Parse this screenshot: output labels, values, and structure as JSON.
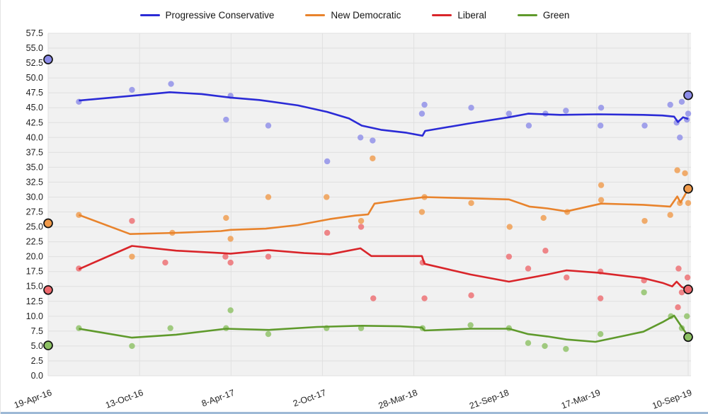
{
  "legend": [
    {
      "label": "Progressive Conservative",
      "color": "#2b2bd6"
    },
    {
      "label": "New Democratic",
      "color": "#e8832c"
    },
    {
      "label": "Liberal",
      "color": "#d9252a"
    },
    {
      "label": "Green",
      "color": "#5f9a2c"
    }
  ],
  "chart_data": {
    "type": "scatter",
    "subtype": "poll-tracker with trend lines and election markers",
    "title": "",
    "xlabel": "",
    "ylabel": "",
    "grid": true,
    "legend_position": "top-center",
    "ylim": [
      0,
      57.5
    ],
    "y_ticks": [
      "0.0",
      "2.5",
      "5.0",
      "7.5",
      "10.0",
      "12.5",
      "15.0",
      "17.5",
      "20.0",
      "22.5",
      "25.0",
      "27.5",
      "30.0",
      "32.5",
      "35.0",
      "37.5",
      "40.0",
      "42.5",
      "45.0",
      "47.5",
      "50.0",
      "52.5",
      "55.0",
      "57.5"
    ],
    "x_tick_labels": [
      "19-Apr-16",
      "13-Oct-16",
      "8-Apr-17",
      "2-Oct-17",
      "28-Mar-18",
      "21-Sep-18",
      "17-Mar-19",
      "10-Sep-19"
    ],
    "x_note": "x values below are fractions of the axis: 0 = 19-Apr-16, 1 = 10-Sep-19",
    "series": [
      {
        "name": "Progressive Conservative",
        "line_color": "#2b2bd6",
        "point_color": "#8c8ce8",
        "election_start": {
          "date": "19-Apr-16",
          "value": 53.1
        },
        "election_end": {
          "date": "10-Sep-19",
          "value": 47.1
        },
        "trend": [
          [
            0.048,
            46.2
          ],
          [
            0.13,
            47.0
          ],
          [
            0.19,
            47.6
          ],
          [
            0.24,
            47.3
          ],
          [
            0.285,
            46.7
          ],
          [
            0.33,
            46.3
          ],
          [
            0.39,
            45.4
          ],
          [
            0.436,
            44.3
          ],
          [
            0.47,
            43.2
          ],
          [
            0.49,
            42.0
          ],
          [
            0.52,
            41.3
          ],
          [
            0.56,
            40.8
          ],
          [
            0.585,
            40.3
          ],
          [
            0.589,
            41.1
          ],
          [
            0.66,
            42.4
          ],
          [
            0.72,
            43.4
          ],
          [
            0.75,
            44.0
          ],
          [
            0.8,
            43.8
          ],
          [
            0.86,
            43.9
          ],
          [
            0.93,
            43.8
          ],
          [
            0.96,
            43.7
          ],
          [
            0.978,
            43.5
          ],
          [
            0.984,
            42.6
          ],
          [
            0.992,
            43.4
          ],
          [
            1.0,
            43.1
          ]
        ],
        "polls": [
          [
            0.048,
            46
          ],
          [
            0.131,
            48
          ],
          [
            0.192,
            49
          ],
          [
            0.278,
            43
          ],
          [
            0.285,
            47
          ],
          [
            0.344,
            42
          ],
          [
            0.436,
            36
          ],
          [
            0.488,
            40
          ],
          [
            0.507,
            39.5
          ],
          [
            0.584,
            44
          ],
          [
            0.588,
            45.5
          ],
          [
            0.661,
            45
          ],
          [
            0.72,
            44
          ],
          [
            0.751,
            42
          ],
          [
            0.777,
            44
          ],
          [
            0.809,
            44.5
          ],
          [
            0.863,
            42
          ],
          [
            0.864,
            45
          ],
          [
            0.932,
            42
          ],
          [
            0.972,
            45.5
          ],
          [
            0.982,
            42.5
          ],
          [
            0.987,
            40
          ],
          [
            0.99,
            46
          ],
          [
            0.998,
            43
          ],
          [
            1.0,
            44
          ]
        ]
      },
      {
        "name": "New Democratic",
        "line_color": "#e8832c",
        "point_color": "#f09a4a",
        "election_start": {
          "date": "19-Apr-16",
          "value": 25.6
        },
        "election_end": {
          "date": "10-Sep-19",
          "value": 31.4
        },
        "trend": [
          [
            0.048,
            27.0
          ],
          [
            0.128,
            23.8
          ],
          [
            0.2,
            24.0
          ],
          [
            0.27,
            24.3
          ],
          [
            0.285,
            24.5
          ],
          [
            0.34,
            24.7
          ],
          [
            0.39,
            25.3
          ],
          [
            0.44,
            26.3
          ],
          [
            0.48,
            26.9
          ],
          [
            0.5,
            27.1
          ],
          [
            0.51,
            28.9
          ],
          [
            0.55,
            29.5
          ],
          [
            0.588,
            30.0
          ],
          [
            0.66,
            29.8
          ],
          [
            0.72,
            29.6
          ],
          [
            0.752,
            28.4
          ],
          [
            0.78,
            28.1
          ],
          [
            0.81,
            27.6
          ],
          [
            0.864,
            28.9
          ],
          [
            0.93,
            28.7
          ],
          [
            0.972,
            28.4
          ],
          [
            0.983,
            30.1
          ],
          [
            0.988,
            29.1
          ],
          [
            1.0,
            31.3
          ]
        ],
        "polls": [
          [
            0.048,
            27
          ],
          [
            0.131,
            20
          ],
          [
            0.194,
            24
          ],
          [
            0.278,
            26.5
          ],
          [
            0.285,
            23
          ],
          [
            0.344,
            30
          ],
          [
            0.435,
            30
          ],
          [
            0.489,
            26
          ],
          [
            0.507,
            36.5
          ],
          [
            0.584,
            27.5
          ],
          [
            0.588,
            30
          ],
          [
            0.661,
            29
          ],
          [
            0.721,
            25
          ],
          [
            0.774,
            26.5
          ],
          [
            0.811,
            27.5
          ],
          [
            0.864,
            32
          ],
          [
            0.864,
            29.5
          ],
          [
            0.932,
            26
          ],
          [
            0.972,
            27
          ],
          [
            0.983,
            34.5
          ],
          [
            0.987,
            29
          ],
          [
            0.995,
            34
          ],
          [
            1.0,
            29
          ]
        ]
      },
      {
        "name": "Liberal",
        "line_color": "#d9252a",
        "point_color": "#ee6a6e",
        "election_start": {
          "date": "19-Apr-16",
          "value": 14.4
        },
        "election_end": {
          "date": "10-Sep-19",
          "value": 14.5
        },
        "trend": [
          [
            0.048,
            17.9
          ],
          [
            0.131,
            21.8
          ],
          [
            0.2,
            21.0
          ],
          [
            0.27,
            20.6
          ],
          [
            0.285,
            20.5
          ],
          [
            0.344,
            21.1
          ],
          [
            0.4,
            20.6
          ],
          [
            0.44,
            20.4
          ],
          [
            0.488,
            21.4
          ],
          [
            0.505,
            20.1
          ],
          [
            0.55,
            20.1
          ],
          [
            0.584,
            20.1
          ],
          [
            0.588,
            18.8
          ],
          [
            0.66,
            17.0
          ],
          [
            0.72,
            15.8
          ],
          [
            0.78,
            17.0
          ],
          [
            0.81,
            17.7
          ],
          [
            0.86,
            17.3
          ],
          [
            0.93,
            16.4
          ],
          [
            0.96,
            15.6
          ],
          [
            0.975,
            15.0
          ],
          [
            0.982,
            15.8
          ],
          [
            0.99,
            14.9
          ],
          [
            1.0,
            14.4
          ]
        ],
        "polls": [
          [
            0.048,
            18
          ],
          [
            0.131,
            26
          ],
          [
            0.183,
            19
          ],
          [
            0.277,
            20
          ],
          [
            0.285,
            19
          ],
          [
            0.344,
            20
          ],
          [
            0.436,
            24
          ],
          [
            0.489,
            25
          ],
          [
            0.508,
            13
          ],
          [
            0.585,
            19
          ],
          [
            0.588,
            13
          ],
          [
            0.661,
            13.5
          ],
          [
            0.72,
            20
          ],
          [
            0.75,
            18
          ],
          [
            0.777,
            21
          ],
          [
            0.81,
            16.5
          ],
          [
            0.863,
            17.5
          ],
          [
            0.863,
            13
          ],
          [
            0.931,
            16
          ],
          [
            0.984,
            11.5
          ],
          [
            0.985,
            18
          ],
          [
            0.99,
            14
          ],
          [
            0.999,
            16.5
          ]
        ]
      },
      {
        "name": "Green",
        "line_color": "#5f9a2c",
        "point_color": "#8cc063",
        "election_start": {
          "date": "19-Apr-16",
          "value": 5.1
        },
        "election_end": {
          "date": "10-Sep-19",
          "value": 6.5
        },
        "trend": [
          [
            0.048,
            7.9
          ],
          [
            0.131,
            6.4
          ],
          [
            0.2,
            6.9
          ],
          [
            0.278,
            7.9
          ],
          [
            0.344,
            7.7
          ],
          [
            0.42,
            8.2
          ],
          [
            0.49,
            8.4
          ],
          [
            0.55,
            8.3
          ],
          [
            0.584,
            8.1
          ],
          [
            0.588,
            7.6
          ],
          [
            0.66,
            7.9
          ],
          [
            0.72,
            7.9
          ],
          [
            0.75,
            7.0
          ],
          [
            0.78,
            6.6
          ],
          [
            0.81,
            6.1
          ],
          [
            0.855,
            5.7
          ],
          [
            0.93,
            7.4
          ],
          [
            0.96,
            9.0
          ],
          [
            0.978,
            10.1
          ],
          [
            1.0,
            6.6
          ]
        ],
        "polls": [
          [
            0.048,
            8
          ],
          [
            0.131,
            5
          ],
          [
            0.191,
            8
          ],
          [
            0.278,
            8
          ],
          [
            0.285,
            11
          ],
          [
            0.344,
            7
          ],
          [
            0.435,
            8
          ],
          [
            0.489,
            8
          ],
          [
            0.585,
            8
          ],
          [
            0.66,
            8.5
          ],
          [
            0.72,
            8
          ],
          [
            0.75,
            5.5
          ],
          [
            0.776,
            5
          ],
          [
            0.809,
            4.5
          ],
          [
            0.863,
            7
          ],
          [
            0.931,
            14
          ],
          [
            0.973,
            10
          ],
          [
            0.99,
            8
          ],
          [
            0.998,
            10
          ]
        ]
      }
    ]
  },
  "colors": {
    "plot_background": "#f1f1f1",
    "gridline": "#e0e0e0",
    "axis_text": "#222222",
    "marker_ring": "#111111",
    "window_bottom_edge": "#9db9d6"
  }
}
